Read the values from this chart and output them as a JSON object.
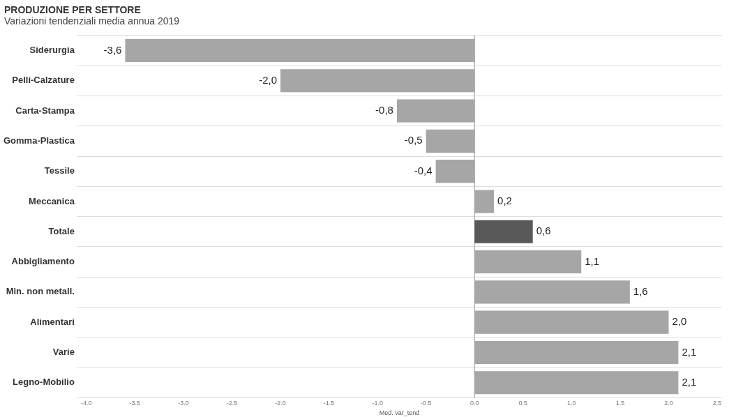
{
  "chart_data": {
    "type": "bar",
    "orientation": "horizontal",
    "title": "PRODUZIONE PER SETTORE",
    "subtitle": "Variazioni tendenziali media annua 2019",
    "xlabel": "Med. var_tend",
    "categories": [
      "Siderurgia",
      "Pelli-Calzature",
      "Carta-Stampa",
      "Gomma-Plastica",
      "Tessile",
      "Meccanica",
      "Totale",
      "Abbigliamento",
      "Min. non metall.",
      "Alimentari",
      "Varie",
      "Legno-Mobilio"
    ],
    "values": [
      -3.6,
      -2.0,
      -0.8,
      -0.5,
      -0.4,
      0.2,
      0.6,
      1.1,
      1.6,
      2.0,
      2.1,
      2.1
    ],
    "colors": [
      "#a6a6a6",
      "#a6a6a6",
      "#a6a6a6",
      "#a6a6a6",
      "#a6a6a6",
      "#a6a6a6",
      "#595959",
      "#a6a6a6",
      "#a6a6a6",
      "#a6a6a6",
      "#a6a6a6",
      "#a6a6a6"
    ],
    "value_labels": [
      "-3,6",
      "-2,0",
      "-0,8",
      "-0,5",
      "-0,4",
      "0,2",
      "0,6",
      "1,1",
      "1,6",
      "2,0",
      "2,1",
      "2,1"
    ],
    "xlim": [
      -4.1,
      2.55
    ],
    "xticks": [
      {
        "value": -4,
        "label": "-4.0"
      },
      {
        "value": -3.5,
        "label": "-3.5"
      },
      {
        "value": -3,
        "label": "-3.0"
      },
      {
        "value": -2.5,
        "label": "-2.5"
      },
      {
        "value": -2,
        "label": "-2.0"
      },
      {
        "value": -1.5,
        "label": "-1.5"
      },
      {
        "value": -1,
        "label": "-1.0"
      },
      {
        "value": -0.5,
        "label": "-0.5"
      },
      {
        "value": 0,
        "label": "0.0"
      },
      {
        "value": 0.5,
        "label": "0.5"
      },
      {
        "value": 1,
        "label": "1.0"
      },
      {
        "value": 1.5,
        "label": "1.5"
      },
      {
        "value": 2,
        "label": "2.0"
      },
      {
        "value": 2.5,
        "label": "2.5"
      }
    ],
    "ref_lines": [
      {
        "axis": "x",
        "value": 0,
        "color": "#999999"
      }
    ],
    "grid": "y",
    "legend": false
  }
}
